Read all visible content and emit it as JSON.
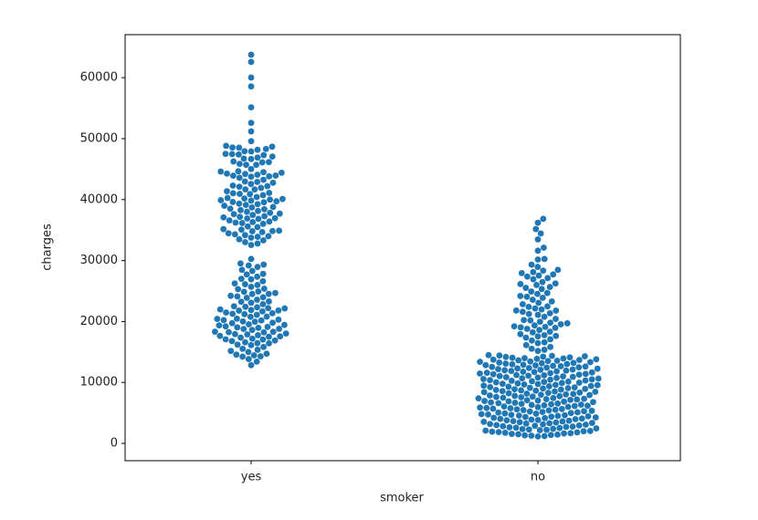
{
  "chart_data": {
    "type": "swarm",
    "xlabel": "smoker",
    "ylabel": "charges",
    "color": "#1f77b4",
    "categories": [
      "yes",
      "no"
    ],
    "ylim": [
      -2840,
      67060
    ],
    "yticks": [
      0,
      10000,
      20000,
      30000,
      40000,
      50000,
      60000
    ],
    "values": [
      [
        63770,
        62590,
        60020,
        58570,
        55140,
        52590,
        51190,
        49580,
        48820,
        48680,
        48550,
        48520,
        48300,
        48170,
        47930,
        47900,
        47500,
        47460,
        47400,
        47290,
        47060,
        46890,
        46720,
        46660,
        46250,
        46150,
        46110,
        45860,
        45710,
        45700,
        45010,
        44640,
        44600,
        44500,
        44400,
        44260,
        44200,
        44080,
        43940,
        43920,
        43810,
        43750,
        43580,
        43250,
        42970,
        42900,
        42760,
        42560,
        42300,
        42210,
        42110,
        41920,
        41680,
        41660,
        41370,
        41100,
        41030,
        40940,
        40900,
        40720,
        40420,
        40270,
        40180,
        40100,
        40000,
        39900,
        39840,
        39720,
        39610,
        39560,
        39330,
        39250,
        39130,
        38990,
        38790,
        38710,
        38510,
        38420,
        38280,
        38130,
        38000,
        37830,
        37700,
        37610,
        37480,
        37270,
        37160,
        37080,
        36950,
        36900,
        36840,
        36580,
        36400,
        36310,
        36220,
        36150,
        36020,
        35590,
        35490,
        35160,
        35070,
        34900,
        34840,
        34810,
        34670,
        34470,
        34300,
        34170,
        34000,
        33900,
        33750,
        33480,
        33310,
        33010,
        32790,
        32550,
        30260,
        29520,
        29330,
        29190,
        28950,
        28470,
        28290,
        27810,
        27720,
        27350,
        27000,
        26920,
        26600,
        26240,
        26110,
        25990,
        25680,
        25380,
        25310,
        24920,
        24870,
        24670,
        24530,
        24510,
        24210,
        24110,
        23970,
        23890,
        23570,
        23290,
        23240,
        23080,
        22840,
        22490,
        22410,
        22330,
        22190,
        22140,
        21980,
        21880,
        21800,
        21780,
        21660,
        21470,
        21350,
        21260,
        21200,
        21100,
        20800,
        20770,
        20460,
        20420,
        20300,
        20230,
        20180,
        20010,
        19960,
        19800,
        19720,
        19540,
        19440,
        19360,
        19200,
        19110,
        19040,
        18960,
        18800,
        18770,
        18610,
        18330,
        18310,
        18250,
        18220,
        18030,
        17930,
        17880,
        17750,
        17630,
        17560,
        17500,
        17360,
        17180,
        17080,
        17040,
        16880,
        16780,
        16580,
        16450,
        16420,
        16200,
        16120,
        15820,
        15520,
        15360,
        15170,
        14990,
        14710,
        14570,
        14450,
        14280,
        14230,
        13830,
        13410,
        12830
      ],
      [
        36840,
        36200,
        35160,
        34440,
        33470,
        32110,
        31620,
        30260,
        30170,
        29330,
        28950,
        28470,
        28340,
        28100,
        27940,
        27720,
        27530,
        27370,
        27120,
        26930,
        26470,
        26240,
        26140,
        25990,
        25660,
        25520,
        25330,
        24910,
        24670,
        24520,
        24180,
        24060,
        23890,
        23560,
        23290,
        23060,
        22840,
        22480,
        22400,
        22140,
        21980,
        21800,
        21780,
        21590,
        21350,
        21230,
        21090,
        20770,
        20420,
        20230,
        20180,
        19960,
        19800,
        19700,
        19540,
        19350,
        19200,
        19110,
        19040,
        18960,
        18800,
        18610,
        18330,
        18220,
        17930,
        17750,
        17630,
        17560,
        17360,
        17080,
        16880,
        16580,
        16450,
        16120,
        15820,
        15520,
        15360,
        15170,
        14480,
        14420,
        14360,
        14290,
        14230,
        14180,
        14110,
        14050,
        13980,
        13930,
        13870,
        13800,
        13740,
        13690,
        13620,
        13560,
        13510,
        13440,
        13380,
        13330,
        13260,
        13200,
        13150,
        13080,
        13020,
        12970,
        12900,
        12840,
        12790,
        12720,
        12660,
        12610,
        12540,
        12480,
        12430,
        12360,
        12300,
        12250,
        12180,
        12120,
        12070,
        12000,
        11940,
        11890,
        11820,
        11760,
        11710,
        11640,
        11580,
        11530,
        11460,
        11400,
        11350,
        11280,
        11220,
        11170,
        11100,
        11040,
        10990,
        10920,
        10860,
        10810,
        10740,
        10680,
        10630,
        10560,
        10500,
        10450,
        10380,
        10320,
        10270,
        10200,
        10140,
        10090,
        10020,
        9960,
        9910,
        9840,
        9780,
        9730,
        9660,
        9600,
        9550,
        9480,
        9420,
        9370,
        9300,
        9240,
        9190,
        9120,
        9060,
        9010,
        8940,
        8880,
        8830,
        8760,
        8700,
        8650,
        8580,
        8520,
        8470,
        8400,
        8340,
        8290,
        8220,
        8160,
        8110,
        8040,
        7980,
        7930,
        7860,
        7800,
        7750,
        7680,
        7620,
        7570,
        7500,
        7440,
        7390,
        7320,
        7260,
        7210,
        7140,
        7080,
        7030,
        6960,
        6900,
        6850,
        6780,
        6720,
        6670,
        6600,
        6540,
        6490,
        6420,
        6360,
        6310,
        6240,
        6180,
        6130,
        6060,
        6000,
        5950,
        5880,
        5820,
        5770,
        5700,
        5640,
        5590,
        5520,
        5460,
        5410,
        5340,
        5280,
        5230,
        5160,
        5100,
        5050,
        4980,
        4920,
        4870,
        4800,
        4740,
        4690,
        4620,
        4560,
        4510,
        4440,
        4380,
        4330,
        4260,
        4200,
        4150,
        4080,
        4020,
        3970,
        3900,
        3840,
        3790,
        3720,
        3660,
        3610,
        3540,
        3480,
        3430,
        3360,
        3300,
        3250,
        3180,
        3120,
        3070,
        3000,
        2940,
        2890,
        2820,
        2760,
        2710,
        2640,
        2580,
        2530,
        2460,
        2400,
        2350,
        2280,
        2220,
        2170,
        2100,
        2040,
        1990,
        1920,
        1860,
        1810,
        1740,
        1680,
        1630,
        1560,
        1500,
        1450,
        1380,
        1320,
        1270,
        1200,
        1140
      ]
    ]
  }
}
